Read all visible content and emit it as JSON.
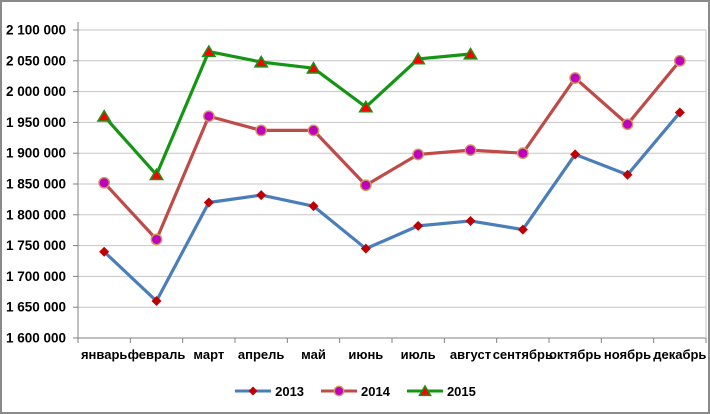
{
  "window": {
    "background": "#ffffff",
    "border_color": "#8a8a8a"
  },
  "chart_data": {
    "type": "line",
    "title": "",
    "categories": [
      "январь",
      "февраль",
      "март",
      "апрель",
      "май",
      "июнь",
      "июль",
      "август",
      "сентябрь",
      "октябрь",
      "ноябрь",
      "декабрь"
    ],
    "series": [
      {
        "name": "2013",
        "color": "#4a7ebb",
        "marker": "diamond",
        "marker_color": "#c00000",
        "marker_border": "#a93a3a",
        "values": [
          1740000,
          1660000,
          1820000,
          1832000,
          1814000,
          1745000,
          1782000,
          1790000,
          1776000,
          1898000,
          1865000,
          1966000
        ]
      },
      {
        "name": "2014",
        "color": "#be4b48",
        "marker": "circle",
        "marker_color": "#bf00bf",
        "marker_border": "#d09a5b",
        "values": [
          1852000,
          1760000,
          1960000,
          1937000,
          1937000,
          1848000,
          1898000,
          1905000,
          1900000,
          2022000,
          1947000,
          2050000
        ]
      },
      {
        "name": "2015",
        "color": "#149614",
        "marker": "triangle",
        "marker_color": "#ff0000",
        "marker_border": "#149614",
        "values": [
          1960000,
          1865000,
          2065000,
          2048000,
          2038000,
          1975000,
          2053000,
          2061000,
          null,
          null,
          null,
          null
        ]
      }
    ],
    "y_axis": {
      "min": 1600000,
      "max": 2100000,
      "step": 50000,
      "tick_labels": [
        "2 100 000",
        "2 050 000",
        "2 000 000",
        "1 950 000",
        "1 900 000",
        "1 850 000",
        "1 800 000",
        "1 750 000",
        "1 700 000",
        "1 650 000",
        "1 600 000"
      ]
    },
    "grid": true,
    "legend_position": "bottom",
    "gridline_color": "#c6c6c6",
    "axis_color": "#808080",
    "label_color": "#000000"
  }
}
